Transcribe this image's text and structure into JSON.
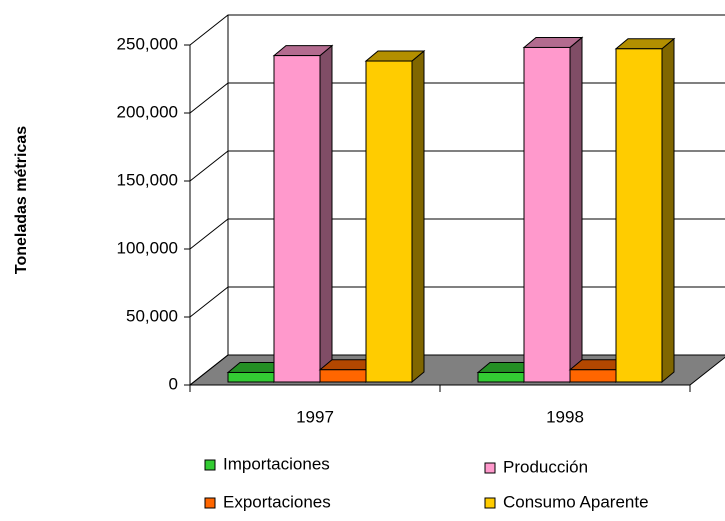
{
  "chart_data": {
    "type": "bar3d",
    "y_label": "Toneladas métricas",
    "categories": [
      "1997",
      "1998"
    ],
    "series": [
      {
        "name": "Importaciones",
        "color": "#33cc33",
        "values": [
          7000,
          7000
        ]
      },
      {
        "name": "Producción",
        "color": "#ff99cc",
        "values": [
          240000,
          246000
        ]
      },
      {
        "name": "Exportaciones",
        "color": "#ff6600",
        "values": [
          9000,
          9000
        ]
      },
      {
        "name": "Consumo Aparente",
        "color": "#ffcc00",
        "values": [
          236000,
          245000
        ]
      }
    ],
    "ylim": [
      0,
      250000
    ],
    "yticks": [
      0,
      {
        "value": 50000,
        "label": "50,000"
      },
      {
        "value": 100000,
        "label": "100,000"
      },
      {
        "value": 150000,
        "label": "150,000"
      },
      {
        "value": 200000,
        "label": "200,000"
      },
      {
        "value": 250000,
        "label": "250,000"
      }
    ],
    "grid": true
  }
}
